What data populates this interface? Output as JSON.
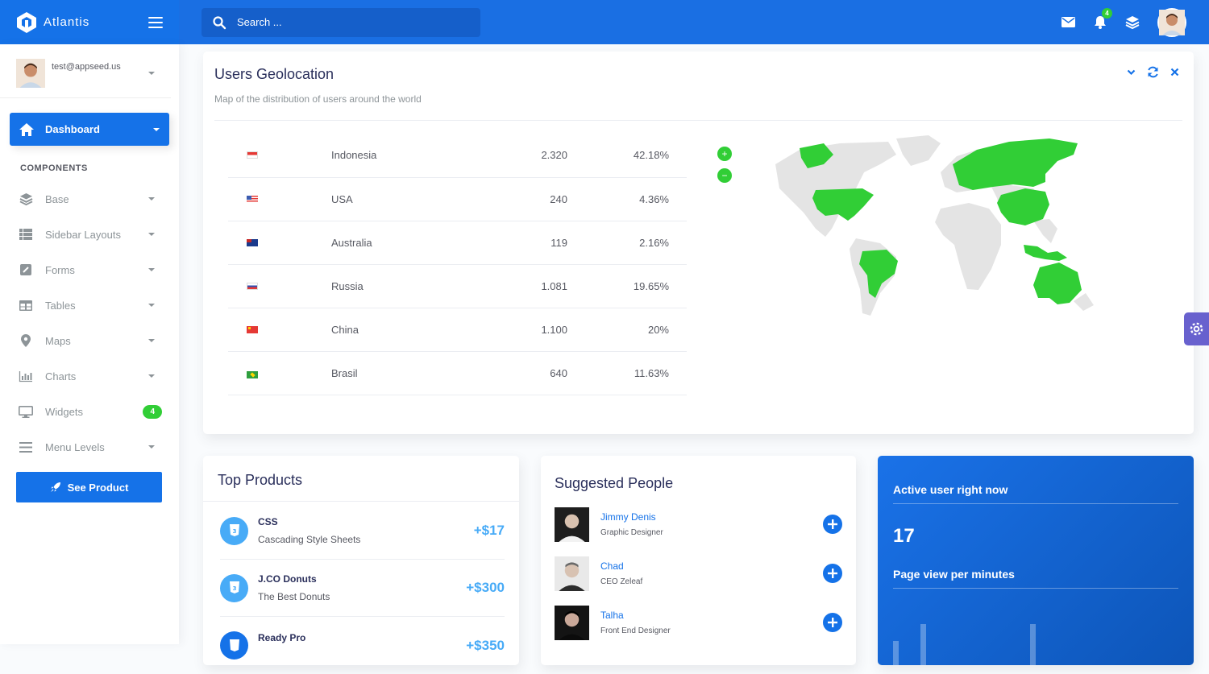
{
  "brand": {
    "name": "Atlantis"
  },
  "search": {
    "placeholder": "Search ..."
  },
  "header": {
    "notification_count": "4"
  },
  "sidebar": {
    "user_email": "test@appseed.us",
    "dashboard_label": "Dashboard",
    "section_title": "COMPONENTS",
    "items": [
      {
        "label": "Base",
        "icon": "layers-icon"
      },
      {
        "label": "Sidebar Layouts",
        "icon": "th-list-icon"
      },
      {
        "label": "Forms",
        "icon": "pen-square-icon"
      },
      {
        "label": "Tables",
        "icon": "table-icon"
      },
      {
        "label": "Maps",
        "icon": "map-marker-icon"
      },
      {
        "label": "Charts",
        "icon": "bar-chart-icon"
      },
      {
        "label": "Widgets",
        "icon": "desktop-icon",
        "badge": "4"
      },
      {
        "label": "Menu Levels",
        "icon": "bars-icon"
      }
    ],
    "see_product_label": "See Product"
  },
  "geolocation": {
    "title": "Users Geolocation",
    "subtitle": "Map of the distribution of users around the world",
    "zoom_in": "+",
    "zoom_out": "−",
    "rows": [
      {
        "country": "Indonesia",
        "users": "2.320",
        "percent": "42.18%"
      },
      {
        "country": "USA",
        "users": "240",
        "percent": "4.36%"
      },
      {
        "country": "Australia",
        "users": "119",
        "percent": "2.16%"
      },
      {
        "country": "Russia",
        "users": "1.081",
        "percent": "19.65%"
      },
      {
        "country": "China",
        "users": "1.100",
        "percent": "20%"
      },
      {
        "country": "Brasil",
        "users": "640",
        "percent": "11.63%"
      }
    ],
    "highlight_color": "#31ce36",
    "base_color": "#e4e4e4"
  },
  "top_products": {
    "title": "Top Products",
    "items": [
      {
        "name": "CSS",
        "desc": "Cascading Style Sheets",
        "price": "+$17"
      },
      {
        "name": "J.CO Donuts",
        "desc": "The Best Donuts",
        "price": "+$300"
      },
      {
        "name": "Ready Pro",
        "desc": "",
        "price": "+$350"
      }
    ]
  },
  "suggested_people": {
    "title": "Suggested People",
    "items": [
      {
        "name": "Jimmy Denis",
        "role": "Graphic Designer"
      },
      {
        "name": "Chad",
        "role": "CEO Zeleaf"
      },
      {
        "name": "Talha",
        "role": "Front End Designer"
      }
    ]
  },
  "active_users": {
    "title": "Active user right now",
    "count": "17",
    "page_view_title": "Page view per minutes"
  },
  "colors": {
    "primary": "#1572e8",
    "success": "#31ce36",
    "info": "#48abf7",
    "secondary": "#6861ce"
  }
}
